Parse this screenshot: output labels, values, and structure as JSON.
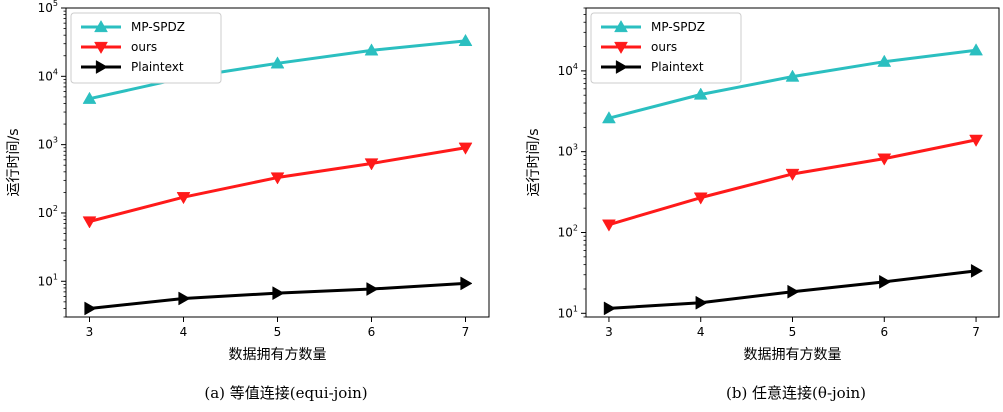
{
  "chart_data": [
    {
      "type": "line",
      "ylog": true,
      "ylim": [
        3,
        100000
      ],
      "xlim": [
        2.75,
        7.25
      ],
      "x": [
        3,
        4,
        5,
        6,
        7
      ],
      "xticks": [
        "3",
        "4",
        "5",
        "6",
        "7"
      ],
      "ytick_exponents": [
        1,
        2,
        3,
        4,
        5
      ],
      "ytick_base": "10",
      "xlabel": "数据拥有方数量",
      "ylabel": "运行时间/s",
      "legend": "top-left",
      "caption": "(a)  等值连接(equi-join)",
      "series": [
        {
          "name": "MP-SPDZ",
          "color": "#2bbfc0",
          "marker": "triangle-up",
          "values": [
            4700,
            9500,
            15500,
            24000,
            33000
          ]
        },
        {
          "name": "ours",
          "color": "#ff1a1a",
          "marker": "triangle-down",
          "values": [
            75,
            170,
            330,
            530,
            900
          ]
        },
        {
          "name": "Plaintext",
          "color": "#000000",
          "marker": "triangle-right",
          "values": [
            4.0,
            5.6,
            6.7,
            7.7,
            9.3
          ]
        }
      ]
    },
    {
      "type": "line",
      "ylog": true,
      "ylim": [
        9,
        60000
      ],
      "xlim": [
        2.75,
        7.25
      ],
      "x": [
        3,
        4,
        5,
        6,
        7
      ],
      "xticks": [
        "3",
        "4",
        "5",
        "6",
        "7"
      ],
      "ytick_exponents": [
        1,
        2,
        3,
        4
      ],
      "ytick_base": "10",
      "xlabel": "数据拥有方数量",
      "ylabel": "运行时间/s",
      "legend": "top-left",
      "caption": "(b)  任意连接(θ-join)",
      "series": [
        {
          "name": "MP-SPDZ",
          "color": "#2bbfc0",
          "marker": "triangle-up",
          "values": [
            2600,
            5100,
            8500,
            13000,
            18000
          ]
        },
        {
          "name": "ours",
          "color": "#ff1a1a",
          "marker": "triangle-down",
          "values": [
            125,
            270,
            530,
            820,
            1400
          ]
        },
        {
          "name": "Plaintext",
          "color": "#000000",
          "marker": "triangle-right",
          "values": [
            11.5,
            13.5,
            18.5,
            24.5,
            33.5
          ]
        }
      ]
    }
  ]
}
